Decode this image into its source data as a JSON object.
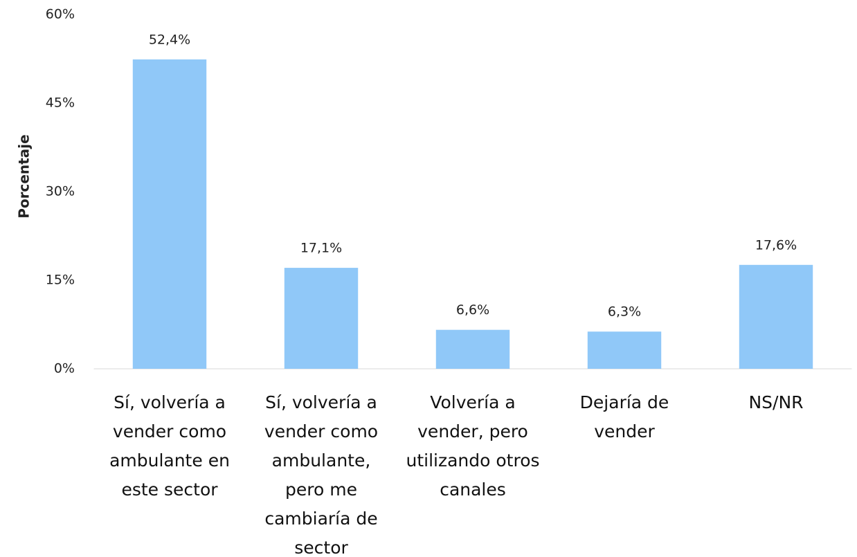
{
  "chart_data": {
    "type": "bar",
    "y_axis_label": "Porcentaje",
    "categories": [
      "Sí, volvería a vender como ambulante en este sector",
      "Sí, volvería a vender como ambulante, pero me cambiaría de sector",
      "Volvería a vender, pero utilizando otros canales",
      "Dejaría de vender",
      "NS/NR"
    ],
    "values": [
      52.4,
      17.1,
      6.6,
      6.3,
      17.6
    ],
    "value_labels": [
      "52,4%",
      "17,1%",
      "6,6%",
      "6,3%",
      "17,6%"
    ],
    "color": "#90c8f8",
    "ylim": [
      0,
      60
    ],
    "yticks": [
      {
        "value": 0,
        "label": "0%"
      },
      {
        "value": 15,
        "label": "15%"
      },
      {
        "value": 30,
        "label": "30%"
      },
      {
        "value": 45,
        "label": "45%"
      },
      {
        "value": 60,
        "label": "60%"
      }
    ],
    "grid": false
  }
}
